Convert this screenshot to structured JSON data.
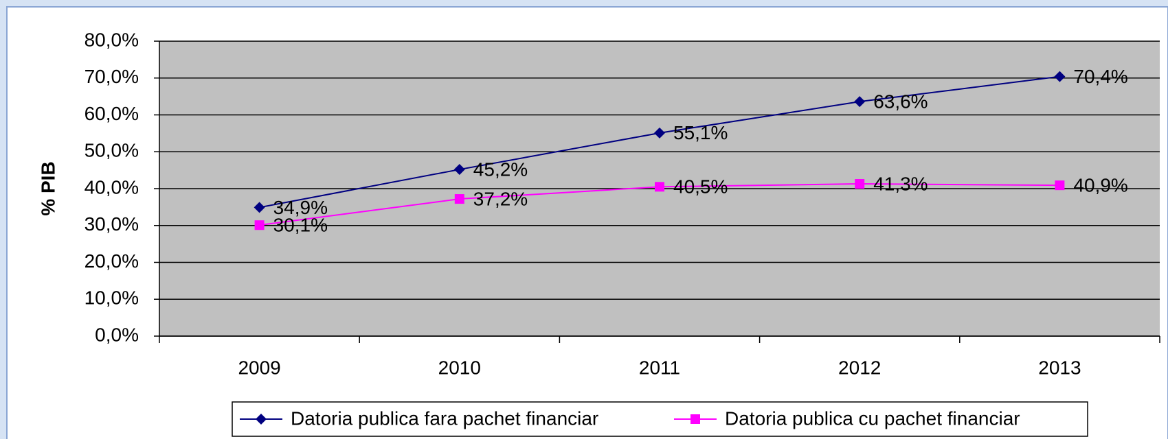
{
  "chart_data": {
    "type": "line",
    "ylabel": "% PIB",
    "categories": [
      "2009",
      "2010",
      "2011",
      "2012",
      "2013"
    ],
    "series": [
      {
        "name": "Datoria publica fara pachet financiar",
        "color": "#000080",
        "marker": "diamond",
        "values": [
          34.9,
          45.2,
          55.1,
          63.6,
          70.4
        ],
        "value_labels": [
          "34,9%",
          "45,2%",
          "55,1%",
          "63,6%",
          "70,4%"
        ]
      },
      {
        "name": "Datoria publica cu pachet financiar",
        "color": "#ff00ff",
        "marker": "square",
        "values": [
          30.1,
          37.2,
          40.5,
          41.3,
          40.9
        ],
        "value_labels": [
          "30,1%",
          "37,2%",
          "40,5%",
          "41,3%",
          "40,9%"
        ]
      }
    ],
    "ylim": [
      0,
      80
    ],
    "yticks": [
      {
        "value": 0,
        "label": "0,0%"
      },
      {
        "value": 10,
        "label": "10,0%"
      },
      {
        "value": 20,
        "label": "20,0%"
      },
      {
        "value": 30,
        "label": "30,0%"
      },
      {
        "value": 40,
        "label": "40,0%"
      },
      {
        "value": 50,
        "label": "50,0%"
      },
      {
        "value": 60,
        "label": "60,0%"
      },
      {
        "value": 70,
        "label": "70,0%"
      },
      {
        "value": 80,
        "label": "80,0%"
      }
    ],
    "grid": true,
    "plot_background": "#c0c0c0",
    "legend": "bottom"
  }
}
